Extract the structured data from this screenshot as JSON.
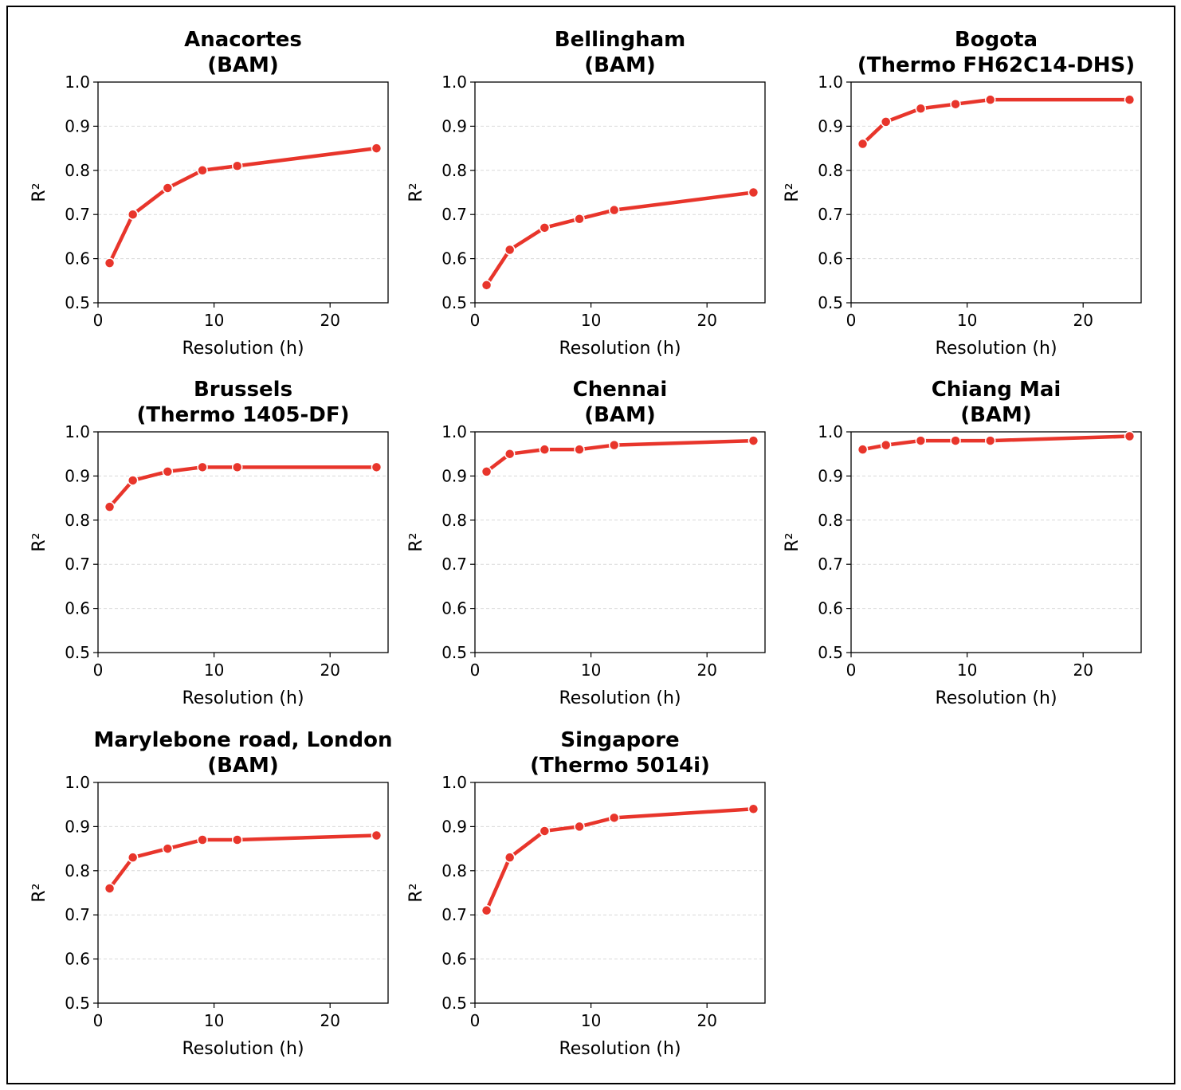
{
  "chart_data": [
    {
      "type": "line",
      "title": [
        "Anacortes",
        "(BAM)"
      ],
      "xlabel": "Resolution (h)",
      "ylabel": "R²",
      "x": [
        1,
        3,
        6,
        9,
        12,
        24
      ],
      "y": [
        0.59,
        0.7,
        0.76,
        0.8,
        0.81,
        0.85
      ],
      "xlim": [
        0,
        25
      ],
      "ylim": [
        0.5,
        1.0
      ],
      "xticks": [
        "0",
        "10",
        "20"
      ],
      "yticks": [
        "0.5",
        "0.6",
        "0.7",
        "0.8",
        "0.9",
        "1.0"
      ],
      "grid": "y-dashed",
      "color": "#e8352b"
    },
    {
      "type": "line",
      "title": [
        "Bellingham",
        "(BAM)"
      ],
      "xlabel": "Resolution (h)",
      "ylabel": "R²",
      "x": [
        1,
        3,
        6,
        9,
        12,
        24
      ],
      "y": [
        0.54,
        0.62,
        0.67,
        0.69,
        0.71,
        0.75
      ],
      "xlim": [
        0,
        25
      ],
      "ylim": [
        0.5,
        1.0
      ],
      "xticks": [
        "0",
        "10",
        "20"
      ],
      "yticks": [
        "0.5",
        "0.6",
        "0.7",
        "0.8",
        "0.9",
        "1.0"
      ],
      "grid": "y-dashed",
      "color": "#e8352b"
    },
    {
      "type": "line",
      "title": [
        "Bogota",
        "(Thermo FH62C14-DHS)"
      ],
      "xlabel": "Resolution (h)",
      "ylabel": "R²",
      "x": [
        1,
        3,
        6,
        9,
        12,
        24
      ],
      "y": [
        0.86,
        0.91,
        0.94,
        0.95,
        0.96,
        0.96
      ],
      "xlim": [
        0,
        25
      ],
      "ylim": [
        0.5,
        1.0
      ],
      "xticks": [
        "0",
        "10",
        "20"
      ],
      "yticks": [
        "0.5",
        "0.6",
        "0.7",
        "0.8",
        "0.9",
        "1.0"
      ],
      "grid": "y-dashed",
      "color": "#e8352b"
    },
    {
      "type": "line",
      "title": [
        "Brussels",
        "(Thermo 1405-DF)"
      ],
      "xlabel": "Resolution (h)",
      "ylabel": "R²",
      "x": [
        1,
        3,
        6,
        9,
        12,
        24
      ],
      "y": [
        0.83,
        0.89,
        0.91,
        0.92,
        0.92,
        0.92
      ],
      "xlim": [
        0,
        25
      ],
      "ylim": [
        0.5,
        1.0
      ],
      "xticks": [
        "0",
        "10",
        "20"
      ],
      "yticks": [
        "0.5",
        "0.6",
        "0.7",
        "0.8",
        "0.9",
        "1.0"
      ],
      "grid": "y-dashed",
      "color": "#e8352b"
    },
    {
      "type": "line",
      "title": [
        "Chennai",
        "(BAM)"
      ],
      "xlabel": "Resolution (h)",
      "ylabel": "R²",
      "x": [
        1,
        3,
        6,
        9,
        12,
        24
      ],
      "y": [
        0.91,
        0.95,
        0.96,
        0.96,
        0.97,
        0.98
      ],
      "xlim": [
        0,
        25
      ],
      "ylim": [
        0.5,
        1.0
      ],
      "xticks": [
        "0",
        "10",
        "20"
      ],
      "yticks": [
        "0.5",
        "0.6",
        "0.7",
        "0.8",
        "0.9",
        "1.0"
      ],
      "grid": "y-dashed",
      "color": "#e8352b"
    },
    {
      "type": "line",
      "title": [
        "Chiang Mai",
        "(BAM)"
      ],
      "xlabel": "Resolution (h)",
      "ylabel": "R²",
      "x": [
        1,
        3,
        6,
        9,
        12,
        24
      ],
      "y": [
        0.96,
        0.97,
        0.98,
        0.98,
        0.98,
        0.99
      ],
      "xlim": [
        0,
        25
      ],
      "ylim": [
        0.5,
        1.0
      ],
      "xticks": [
        "0",
        "10",
        "20"
      ],
      "yticks": [
        "0.5",
        "0.6",
        "0.7",
        "0.8",
        "0.9",
        "1.0"
      ],
      "grid": "y-dashed",
      "color": "#e8352b"
    },
    {
      "type": "line",
      "title": [
        "Marylebone road, London",
        "(BAM)"
      ],
      "xlabel": "Resolution (h)",
      "ylabel": "R²",
      "x": [
        1,
        3,
        6,
        9,
        12,
        24
      ],
      "y": [
        0.76,
        0.83,
        0.85,
        0.87,
        0.87,
        0.88
      ],
      "xlim": [
        0,
        25
      ],
      "ylim": [
        0.5,
        1.0
      ],
      "xticks": [
        "0",
        "10",
        "20"
      ],
      "yticks": [
        "0.5",
        "0.6",
        "0.7",
        "0.8",
        "0.9",
        "1.0"
      ],
      "grid": "y-dashed",
      "color": "#e8352b"
    },
    {
      "type": "line",
      "title": [
        "Singapore",
        "(Thermo 5014i)"
      ],
      "xlabel": "Resolution (h)",
      "ylabel": "R²",
      "x": [
        1,
        3,
        6,
        9,
        12,
        24
      ],
      "y": [
        0.71,
        0.83,
        0.89,
        0.9,
        0.92,
        0.94
      ],
      "xlim": [
        0,
        25
      ],
      "ylim": [
        0.5,
        1.0
      ],
      "xticks": [
        "0",
        "10",
        "20"
      ],
      "yticks": [
        "0.5",
        "0.6",
        "0.7",
        "0.8",
        "0.9",
        "1.0"
      ],
      "grid": "y-dashed",
      "color": "#e8352b"
    }
  ]
}
